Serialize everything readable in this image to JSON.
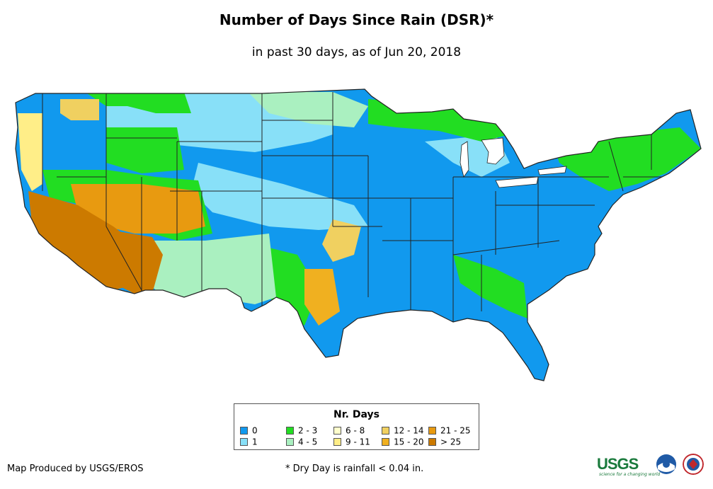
{
  "title": "Number of Days Since Rain (DSR)*",
  "subtitle": "in past 30 days, as of Jun 20, 2018",
  "legend": {
    "title": "Nr. Days",
    "items": [
      {
        "label": "0",
        "color": "#1199ee"
      },
      {
        "label": "1",
        "color": "#88e0f8"
      },
      {
        "label": "2 - 3",
        "color": "#22dd22"
      },
      {
        "label": "4 - 5",
        "color": "#aaf0c0"
      },
      {
        "label": "6 - 8",
        "color": "#ffffcc"
      },
      {
        "label": "9 - 11",
        "color": "#ffee88"
      },
      {
        "label": "12 - 14",
        "color": "#f0d060"
      },
      {
        "label": "15 - 20",
        "color": "#f0b020"
      },
      {
        "label": "21 - 25",
        "color": "#e89a10"
      },
      {
        "label": "> 25",
        "color": "#cc7a00"
      }
    ]
  },
  "footer": {
    "credit": "Map Produced by USGS/EROS",
    "note": "* Dry Day is rainfall < 0.04 in."
  },
  "logos": {
    "usgs": "USGS",
    "usgs_tagline": "science for a changing world"
  },
  "icons": {
    "noaa": "noaa-logo-icon",
    "nws": "nws-logo-icon"
  }
}
